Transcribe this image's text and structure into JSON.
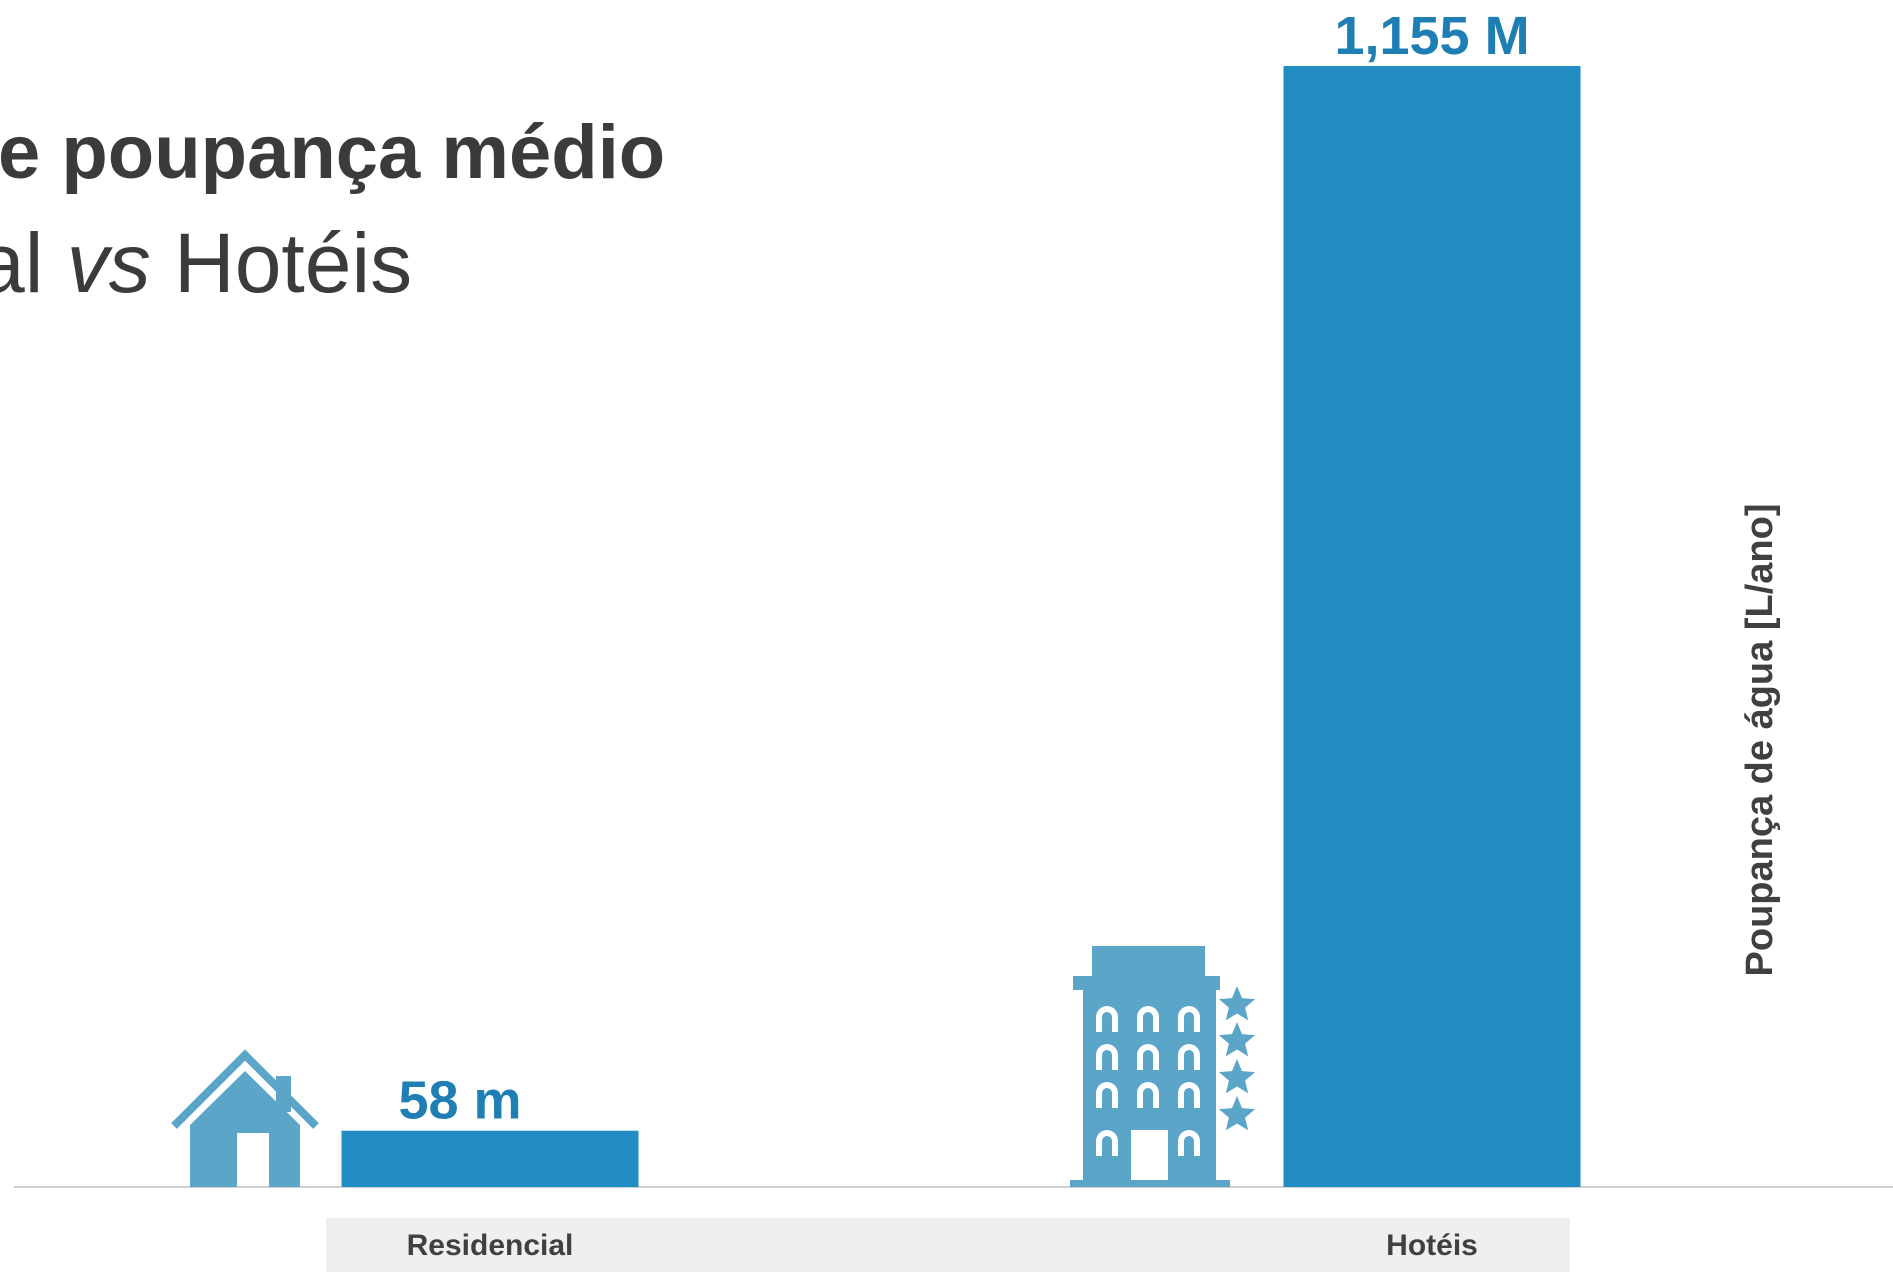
{
  "title": {
    "line1": "e poupança médio",
    "line2_pre": "al ",
    "line2_em": "vs",
    "line2_post": " Hotéis"
  },
  "chart_data": {
    "type": "bar",
    "categories": [
      "Residencial",
      "Hotéis"
    ],
    "values": [
      58000000,
      1155000000
    ],
    "data_labels": [
      "58 m",
      "1,155 M"
    ],
    "ylabel": "Poupança de água [L/ano]",
    "ylim": [
      0,
      1155000000
    ],
    "grid": false,
    "legend": "none"
  },
  "icons": [
    "house-icon",
    "hotel-building-icon"
  ],
  "colors": {
    "bar": "#228dc2",
    "label": "#1f7fb5",
    "icon": "#5aa5c8",
    "axis": "#d0d0d0",
    "category_band": "#efefef"
  }
}
